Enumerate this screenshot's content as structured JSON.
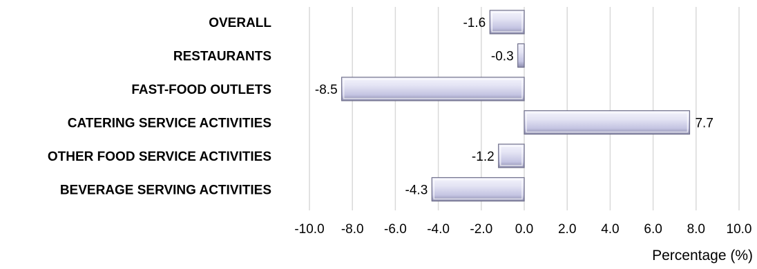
{
  "chart_data": {
    "type": "bar",
    "orientation": "horizontal",
    "categories": [
      "OVERALL",
      "RESTAURANTS",
      "FAST-FOOD OUTLETS",
      "CATERING SERVICE ACTIVITIES",
      "OTHER FOOD SERVICE ACTIVITIES",
      "BEVERAGE SERVING ACTIVITIES"
    ],
    "values": [
      -1.6,
      -0.3,
      -8.5,
      7.7,
      -1.2,
      -4.3
    ],
    "data_labels": [
      "-1.6",
      "-0.3",
      "-8.5",
      "7.7",
      "-1.2",
      "-4.3"
    ],
    "xlabel": "Percentage (%)",
    "ylabel": "",
    "title": "",
    "xlim": [
      -10,
      10
    ],
    "x_ticks": [
      "-10.0",
      "-8.0",
      "-6.0",
      "-4.0",
      "-2.0",
      "0.0",
      "2.0",
      "4.0",
      "6.0",
      "8.0",
      "10.0"
    ],
    "grid": "vertical",
    "legend": "none",
    "colors": {
      "bar_fill_light": "#f0f0fa",
      "bar_fill_mid": "#c8c8e6",
      "bar_fill_dark": "#9a9ab8",
      "bar_stroke": "#6e6e8a",
      "gridline": "#d9d9d9"
    }
  }
}
